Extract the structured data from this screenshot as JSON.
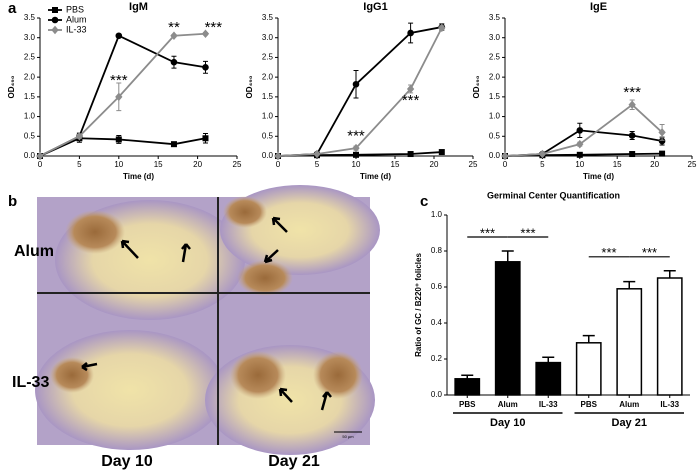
{
  "chart_data": [
    {
      "type": "line",
      "panel_label": "a",
      "title": "IgM",
      "xlabel": "Time (d)",
      "ylabel": "OD₄₉₀",
      "x": [
        0,
        5,
        10,
        17,
        21
      ],
      "xlim": [
        0,
        25
      ],
      "xticks": [
        0,
        5,
        10,
        15,
        20,
        25
      ],
      "ylim": [
        0,
        3.5
      ],
      "yticks": [
        {
          "value": 0,
          "label": "0.0"
        },
        0.5,
        {
          "value": 1,
          "label": "1.0"
        },
        1.5,
        {
          "value": 2,
          "label": "2.0"
        },
        2.5,
        {
          "value": 3,
          "label": "3.0"
        },
        3.5
      ],
      "legend": "upper left",
      "series": [
        {
          "name": "PBS",
          "color": "#000000",
          "marker": "square",
          "values": [
            0,
            0.45,
            0.42,
            0.3,
            0.45
          ],
          "errors": [
            0,
            0.1,
            0.1,
            0.03,
            0.12
          ]
        },
        {
          "name": "Alum",
          "color": "#000000",
          "marker": "circle",
          "values": [
            0,
            0.5,
            3.05,
            2.38,
            2.25
          ],
          "errors": [
            0,
            0.08,
            0.03,
            0.15,
            0.15
          ]
        },
        {
          "name": "IL-33",
          "color": "#8c8c8c",
          "marker": "diamond",
          "values": [
            0,
            0.5,
            1.5,
            3.05,
            3.1
          ],
          "errors": [
            0,
            0.05,
            0.35,
            0.03,
            0.03
          ]
        }
      ],
      "annotations": [
        {
          "text": "***",
          "x": 10,
          "y": 1.9
        },
        {
          "text": "**",
          "x": 17,
          "y": 3.25
        },
        {
          "text": "***",
          "x": 22,
          "y": 3.25
        }
      ]
    },
    {
      "type": "line",
      "title": "IgG1",
      "xlabel": "Time (d)",
      "ylabel": "OD₄₉₀",
      "x": [
        0,
        5,
        10,
        17,
        21
      ],
      "xlim": [
        0,
        25
      ],
      "xticks": [
        0,
        5,
        10,
        15,
        20,
        25
      ],
      "ylim": [
        0,
        3.5
      ],
      "yticks": [
        {
          "value": 0,
          "label": "0.0"
        },
        0.5,
        {
          "value": 1,
          "label": "1.0"
        },
        1.5,
        {
          "value": 2,
          "label": "2.0"
        },
        2.5,
        {
          "value": 3,
          "label": "3.0"
        },
        3.5
      ],
      "series": [
        {
          "name": "PBS",
          "color": "#000000",
          "marker": "square",
          "values": [
            0,
            0.02,
            0.03,
            0.05,
            0.1
          ],
          "errors": [
            0,
            0.01,
            0.01,
            0.02,
            0.03
          ]
        },
        {
          "name": "Alum",
          "color": "#000000",
          "marker": "circle",
          "values": [
            0,
            0.05,
            1.82,
            3.12,
            3.27
          ],
          "errors": [
            0,
            0.02,
            0.35,
            0.25,
            0.08
          ]
        },
        {
          "name": "IL-33",
          "color": "#8c8c8c",
          "marker": "diamond",
          "values": [
            0,
            0.05,
            0.2,
            1.7,
            3.25
          ],
          "errors": [
            0,
            0.02,
            0.05,
            0.1,
            0.05
          ]
        }
      ],
      "annotations": [
        {
          "text": "***",
          "x": 10,
          "y": 0.5
        },
        {
          "text": "***",
          "x": 17,
          "y": 1.4
        }
      ]
    },
    {
      "type": "line",
      "title": "IgE",
      "xlabel": "Time (d)",
      "ylabel": "OD₄₉₀",
      "x": [
        0,
        5,
        10,
        17,
        21
      ],
      "xlim": [
        0,
        25
      ],
      "xticks": [
        0,
        5,
        10,
        15,
        20,
        25
      ],
      "ylim": [
        0,
        3.5
      ],
      "yticks": [
        {
          "value": 0,
          "label": "0.0"
        },
        0.5,
        {
          "value": 1,
          "label": "1.0"
        },
        1.5,
        {
          "value": 2,
          "label": "2.0"
        },
        2.5,
        {
          "value": 3,
          "label": "3.0"
        },
        3.5
      ],
      "series": [
        {
          "name": "PBS",
          "color": "#000000",
          "marker": "square",
          "values": [
            0,
            0.02,
            0.03,
            0.05,
            0.06
          ],
          "errors": [
            0,
            0.01,
            0.01,
            0.01,
            0.02
          ]
        },
        {
          "name": "Alum",
          "color": "#000000",
          "marker": "circle",
          "values": [
            0,
            0.05,
            0.65,
            0.52,
            0.38
          ],
          "errors": [
            0,
            0.02,
            0.18,
            0.1,
            0.1
          ]
        },
        {
          "name": "IL-33",
          "color": "#8c8c8c",
          "marker": "diamond",
          "values": [
            0,
            0.05,
            0.3,
            1.3,
            0.6
          ],
          "errors": [
            0,
            0.02,
            0.05,
            0.12,
            0.2
          ]
        }
      ],
      "annotations": [
        {
          "text": "***",
          "x": 17,
          "y": 1.6
        }
      ]
    },
    {
      "type": "bar",
      "panel_label": "c",
      "title": "Germinal Center Quantification",
      "ylabel": "Ratio of GC / B220⁺ folicles",
      "categories": [
        "PBS",
        "Alum",
        "IL-33",
        "PBS",
        "Alum",
        "IL-33"
      ],
      "groups": [
        "Day 10",
        "Day 21"
      ],
      "values": [
        0.09,
        0.74,
        0.18,
        0.29,
        0.59,
        0.65
      ],
      "errors": [
        0.02,
        0.06,
        0.03,
        0.04,
        0.04,
        0.04
      ],
      "colors": [
        "#000000",
        "#000000",
        "#000000",
        "#ffffff",
        "#ffffff",
        "#ffffff"
      ],
      "ylim": [
        0,
        1
      ],
      "yticks": [
        {
          "value": 0,
          "label": "0.0"
        },
        0.2,
        0.4,
        0.6,
        0.8,
        {
          "value": 1,
          "label": "1.0"
        }
      ],
      "significance": [
        {
          "text": "***",
          "between": [
            0,
            1
          ]
        },
        {
          "text": "***",
          "between": [
            1,
            2
          ]
        },
        {
          "text": "***",
          "between": [
            3,
            4
          ]
        },
        {
          "text": "***",
          "between": [
            4,
            5
          ]
        }
      ]
    }
  ],
  "micrograph": {
    "panel_label": "b",
    "rows": [
      "Alum",
      "IL-33"
    ],
    "columns": [
      "Day 10",
      "Day 21"
    ],
    "scale_bar": "50 µm"
  }
}
